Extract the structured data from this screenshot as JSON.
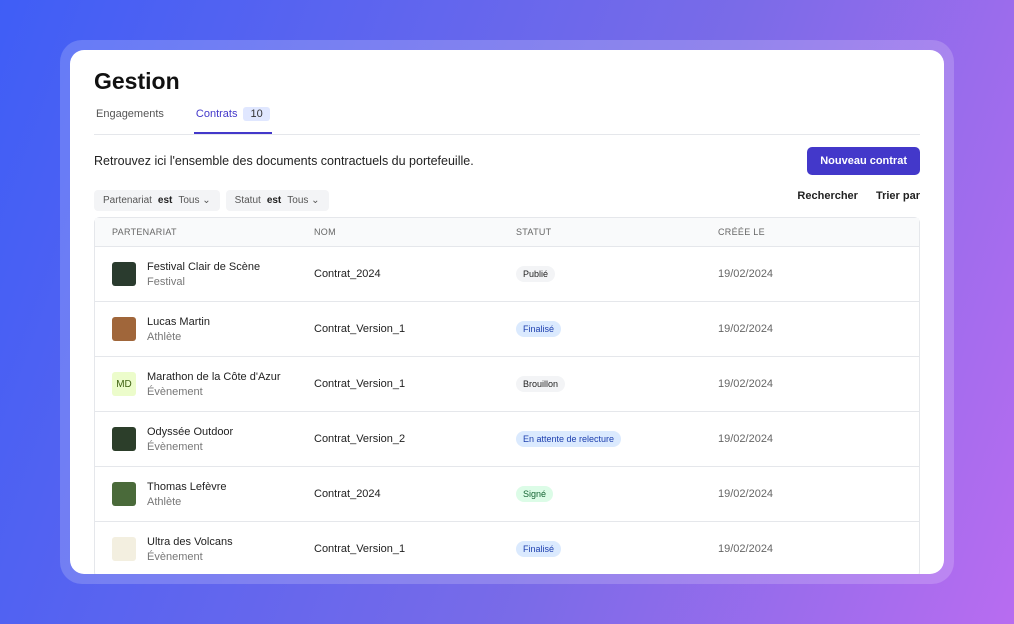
{
  "header": {
    "title": "Gestion"
  },
  "tabs": [
    {
      "label": "Engagements"
    },
    {
      "label": "Contrats",
      "count": "10"
    }
  ],
  "description": "Retrouvez ici l'ensemble des documents contractuels du portefeuille.",
  "primary_button": "Nouveau contrat",
  "filters": [
    {
      "field": "Partenariat",
      "op": "est",
      "value": "Tous"
    },
    {
      "field": "Statut",
      "op": "est",
      "value": "Tous"
    }
  ],
  "actions": [
    "Rechercher",
    "Trier par"
  ],
  "table": {
    "columns": [
      "PARTENARIAT",
      "NOM",
      "STATUT",
      "CRÉÉE LE"
    ],
    "rows": [
      {
        "partner": "Festival Clair de Scène",
        "kind": "Festival",
        "name": "Contrat_2024",
        "status": "Publié",
        "date": "19/02/2024"
      },
      {
        "partner": "Lucas Martin",
        "kind": "Athlète",
        "name": "Contrat_Version_1",
        "status": "Finalisé",
        "date": "19/02/2024"
      },
      {
        "partner": "Marathon de la Côte d'Azur",
        "kind": "Évènement",
        "initials": "MD",
        "name": "Contrat_Version_1",
        "status": "Brouillon",
        "date": "19/02/2024"
      },
      {
        "partner": "Odyssée Outdoor",
        "kind": "Évènement",
        "name": "Contrat_Version_2",
        "status": "En attente de relecture",
        "date": "19/02/2024"
      },
      {
        "partner": "Thomas Lefèvre",
        "kind": "Athlète",
        "name": "Contrat_2024",
        "status": "Signé",
        "date": "19/02/2024"
      },
      {
        "partner": "Ultra des Volcans",
        "kind": "Évènement",
        "name": "Contrat_Version_1",
        "status": "Finalisé",
        "date": "19/02/2024"
      }
    ]
  }
}
